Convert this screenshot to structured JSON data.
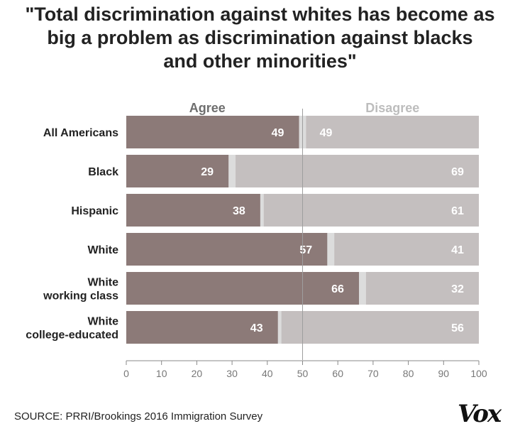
{
  "title_lines": [
    "\"Total discrimination against whites has become as",
    "big a problem as discrimination against blacks",
    "and other minorities\""
  ],
  "source": "SOURCE: PRRI/Brookings 2016 Immigration Survey",
  "logo": "Vox",
  "colors": {
    "agree": "#8c7a78",
    "disagree": "#c4bfbf",
    "gap": "#dcdcdc",
    "agree_header": "#6e6e6e",
    "disagree_header": "#bdbdbd",
    "grid_line": "#9e9e9e"
  },
  "chart_data": {
    "type": "bar",
    "orientation": "horizontal",
    "stacked": true,
    "categories": [
      [
        "All Americans"
      ],
      [
        "Black"
      ],
      [
        "Hispanic"
      ],
      [
        "White"
      ],
      [
        "White",
        "working class"
      ],
      [
        "White",
        "college-educated"
      ]
    ],
    "series": [
      {
        "name": "Agree",
        "values": [
          49,
          29,
          38,
          57,
          66,
          43
        ]
      },
      {
        "name": "Disagree",
        "values": [
          49,
          69,
          61,
          41,
          32,
          56
        ]
      }
    ],
    "xlim": [
      0,
      100
    ],
    "xticks": [
      0,
      10,
      20,
      30,
      40,
      50,
      60,
      70,
      80,
      90,
      100
    ],
    "reference_line": 50
  }
}
